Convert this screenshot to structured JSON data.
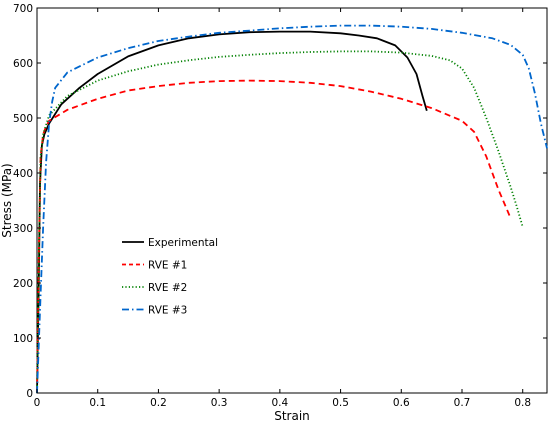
{
  "chart_data": {
    "type": "line",
    "xlabel": "Strain",
    "ylabel": "Stress (MPa)",
    "xlim": [
      0,
      0.84
    ],
    "ylim": [
      0,
      700
    ],
    "xticks": [
      0,
      0.1,
      0.2,
      0.3,
      0.4,
      0.5,
      0.6,
      0.7,
      0.8
    ],
    "xtick_labels": [
      "0",
      "0.1",
      "0.2",
      "0.3",
      "0.4",
      "0.5",
      "0.6",
      "0.7",
      "0.8"
    ],
    "yticks": [
      0,
      100,
      200,
      300,
      400,
      500,
      600,
      700
    ],
    "ytick_labels": [
      "0",
      "100",
      "200",
      "300",
      "400",
      "500",
      "600",
      "700"
    ],
    "grid": false,
    "legend_position": "left-center",
    "series": [
      {
        "name": "Experimental",
        "color": "#000000",
        "dash": "solid",
        "x": [
          0,
          0.003,
          0.005,
          0.008,
          0.012,
          0.02,
          0.04,
          0.07,
          0.1,
          0.15,
          0.2,
          0.25,
          0.3,
          0.35,
          0.4,
          0.45,
          0.5,
          0.53,
          0.56,
          0.59,
          0.61,
          0.625,
          0.635,
          0.642
        ],
        "y": [
          0,
          200,
          380,
          450,
          470,
          490,
          525,
          555,
          580,
          612,
          632,
          645,
          652,
          656,
          657,
          657,
          654,
          650,
          645,
          632,
          610,
          580,
          540,
          513
        ]
      },
      {
        "name": "RVE #1",
        "color": "#ff0000",
        "dash": "dashed",
        "x": [
          0,
          0.003,
          0.006,
          0.01,
          0.015,
          0.02,
          0.05,
          0.1,
          0.15,
          0.2,
          0.25,
          0.3,
          0.35,
          0.4,
          0.45,
          0.5,
          0.55,
          0.6,
          0.65,
          0.7,
          0.72,
          0.74,
          0.76,
          0.78
        ],
        "y": [
          0,
          250,
          430,
          470,
          485,
          495,
          515,
          535,
          550,
          558,
          564,
          567,
          568,
          567,
          564,
          558,
          548,
          535,
          518,
          495,
          475,
          430,
          370,
          318
        ]
      },
      {
        "name": "RVE #2",
        "color": "#008000",
        "dash": "dotted",
        "x": [
          0,
          0.003,
          0.006,
          0.01,
          0.02,
          0.05,
          0.1,
          0.15,
          0.2,
          0.25,
          0.3,
          0.35,
          0.4,
          0.45,
          0.5,
          0.55,
          0.6,
          0.65,
          0.68,
          0.7,
          0.72,
          0.74,
          0.76,
          0.78,
          0.79,
          0.8
        ],
        "y": [
          0,
          240,
          430,
          470,
          505,
          540,
          568,
          585,
          597,
          605,
          611,
          615,
          618,
          620,
          621,
          621,
          619,
          613,
          605,
          590,
          555,
          500,
          440,
          375,
          340,
          302
        ]
      },
      {
        "name": "RVE #3",
        "color": "#0066cc",
        "dash": "dashdot",
        "x": [
          0,
          0.005,
          0.01,
          0.015,
          0.02,
          0.025,
          0.03,
          0.05,
          0.1,
          0.15,
          0.2,
          0.25,
          0.3,
          0.35,
          0.4,
          0.45,
          0.5,
          0.55,
          0.6,
          0.65,
          0.7,
          0.75,
          0.78,
          0.8,
          0.81,
          0.82,
          0.83,
          0.84
        ],
        "y": [
          0,
          150,
          300,
          420,
          490,
          530,
          555,
          583,
          610,
          627,
          640,
          648,
          655,
          659,
          663,
          666,
          668,
          668,
          666,
          662,
          655,
          645,
          633,
          615,
          590,
          545,
          490,
          445
        ]
      }
    ]
  }
}
